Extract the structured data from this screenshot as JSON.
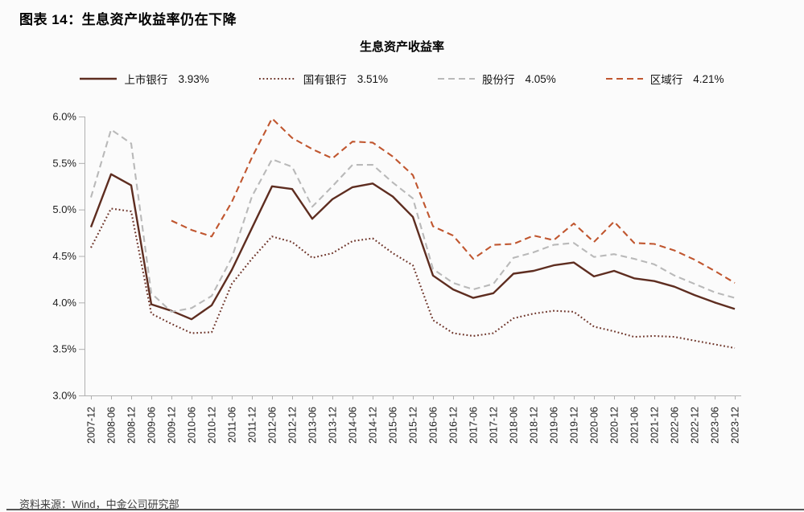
{
  "header": {
    "title": "图表 14：生息资产收益率仍在下降"
  },
  "footer": {
    "source": "资料来源：Wind，中金公司研究部"
  },
  "colors": {
    "listed": "#5E2D20",
    "state_owned": "#6E352A",
    "joint_stock": "#B9B9B9",
    "regional": "#C0562F",
    "axis": "#b0b0b0"
  },
  "chart_data": {
    "type": "line",
    "title": "生息资产收益率",
    "xlabel": "",
    "ylabel": "",
    "ylim": [
      3.0,
      6.0
    ],
    "yticks": [
      "6.0%",
      "5.5%",
      "5.0%",
      "4.5%",
      "4.0%",
      "3.5%",
      "3.0%"
    ],
    "grid": false,
    "legend_position": "top",
    "categories": [
      "2007-12",
      "2008-06",
      "2008-12",
      "2009-06",
      "2009-12",
      "2010-06",
      "2010-12",
      "2011-06",
      "2011-12",
      "2012-06",
      "2012-12",
      "2013-06",
      "2013-12",
      "2014-06",
      "2014-12",
      "2015-06",
      "2015-12",
      "2016-06",
      "2016-12",
      "2017-06",
      "2017-12",
      "2018-06",
      "2018-12",
      "2019-06",
      "2019-12",
      "2020-06",
      "2020-12",
      "2021-06",
      "2021-12",
      "2022-06",
      "2022-12",
      "2023-06",
      "2023-12"
    ],
    "series": [
      {
        "name": "上市银行",
        "latest_label": "3.93%",
        "color": "#5E2D20",
        "style": "solid",
        "values": [
          4.81,
          5.38,
          5.26,
          3.98,
          3.91,
          3.82,
          3.97,
          4.35,
          4.8,
          5.25,
          5.22,
          4.9,
          5.11,
          5.24,
          5.28,
          5.14,
          4.92,
          4.29,
          4.14,
          4.05,
          4.1,
          4.31,
          4.34,
          4.4,
          4.43,
          4.28,
          4.34,
          4.26,
          4.23,
          4.17,
          4.08,
          4.0,
          3.93
        ]
      },
      {
        "name": "国有银行",
        "latest_label": "3.51%",
        "color": "#6E352A",
        "style": "dotted",
        "values": [
          4.59,
          5.01,
          4.98,
          3.88,
          3.77,
          3.67,
          3.68,
          4.2,
          4.47,
          4.71,
          4.65,
          4.48,
          4.53,
          4.66,
          4.69,
          4.53,
          4.4,
          3.81,
          3.67,
          3.64,
          3.67,
          3.83,
          3.88,
          3.91,
          3.9,
          3.74,
          3.69,
          3.63,
          3.64,
          3.63,
          3.59,
          3.55,
          3.51
        ]
      },
      {
        "name": "股份行",
        "latest_label": "4.05%",
        "color": "#B9B9B9",
        "style": "dashed",
        "values": [
          5.13,
          5.86,
          5.71,
          4.1,
          3.9,
          3.94,
          4.07,
          4.48,
          5.14,
          5.54,
          5.46,
          5.03,
          5.25,
          5.48,
          5.48,
          5.29,
          5.12,
          4.36,
          4.21,
          4.14,
          4.2,
          4.48,
          4.54,
          4.62,
          4.64,
          4.49,
          4.52,
          4.47,
          4.41,
          4.29,
          4.2,
          4.11,
          4.05
        ]
      },
      {
        "name": "区域行",
        "latest_label": "4.21%",
        "color": "#C0562F",
        "style": "dashed",
        "values": [
          null,
          null,
          null,
          null,
          4.88,
          4.78,
          4.71,
          5.08,
          5.56,
          5.98,
          5.77,
          5.65,
          5.55,
          5.73,
          5.72,
          5.57,
          5.37,
          4.82,
          4.72,
          4.47,
          4.62,
          4.63,
          4.72,
          4.67,
          4.85,
          4.65,
          4.87,
          4.64,
          4.63,
          4.56,
          4.46,
          4.34,
          4.21
        ]
      }
    ]
  }
}
